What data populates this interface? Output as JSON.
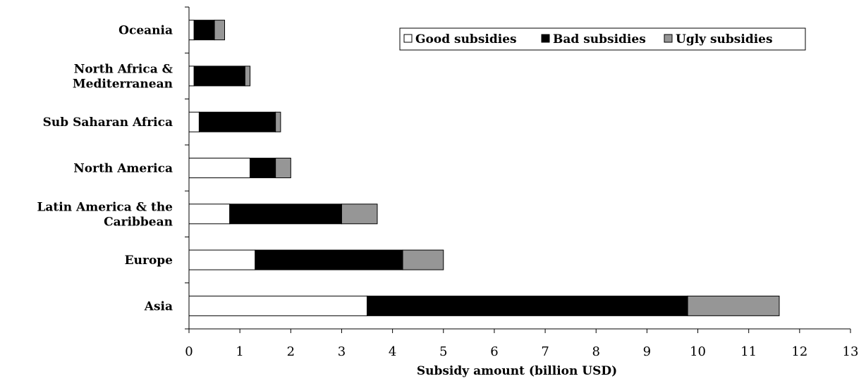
{
  "chart_data": {
    "type": "bar",
    "orientation": "horizontal",
    "stacked": true,
    "categories": [
      "Asia",
      "Europe",
      "Latin America & the Caribbean",
      "North America",
      "Sub Saharan Africa",
      "North Africa & Mediterranean",
      "Oceania"
    ],
    "category_label_lines": [
      [
        "Asia"
      ],
      [
        "Europe"
      ],
      [
        "Latin America & the",
        "Caribbean"
      ],
      [
        "North America"
      ],
      [
        "Sub Saharan Africa"
      ],
      [
        "North Africa &",
        "Mediterranean"
      ],
      [
        "Oceania"
      ]
    ],
    "series": [
      {
        "name": "Good subsidies",
        "color": "#ffffff",
        "values": [
          3.5,
          1.3,
          0.8,
          1.2,
          0.2,
          0.1,
          0.1
        ]
      },
      {
        "name": "Bad subsidies",
        "color": "#000000",
        "values": [
          6.3,
          2.9,
          2.2,
          0.5,
          1.5,
          1.0,
          0.4
        ]
      },
      {
        "name": "Ugly subsidies",
        "color": "#969696",
        "values": [
          1.8,
          0.8,
          0.7,
          0.3,
          0.1,
          0.1,
          0.2
        ]
      }
    ],
    "xlabel": "Subsidy amount (billion USD)",
    "ylabel": "",
    "xlim": [
      0,
      13
    ],
    "xticks": [
      0,
      1,
      2,
      3,
      4,
      5,
      6,
      7,
      8,
      9,
      10,
      11,
      12,
      13
    ],
    "grid": false,
    "legend_position": "top-right"
  }
}
